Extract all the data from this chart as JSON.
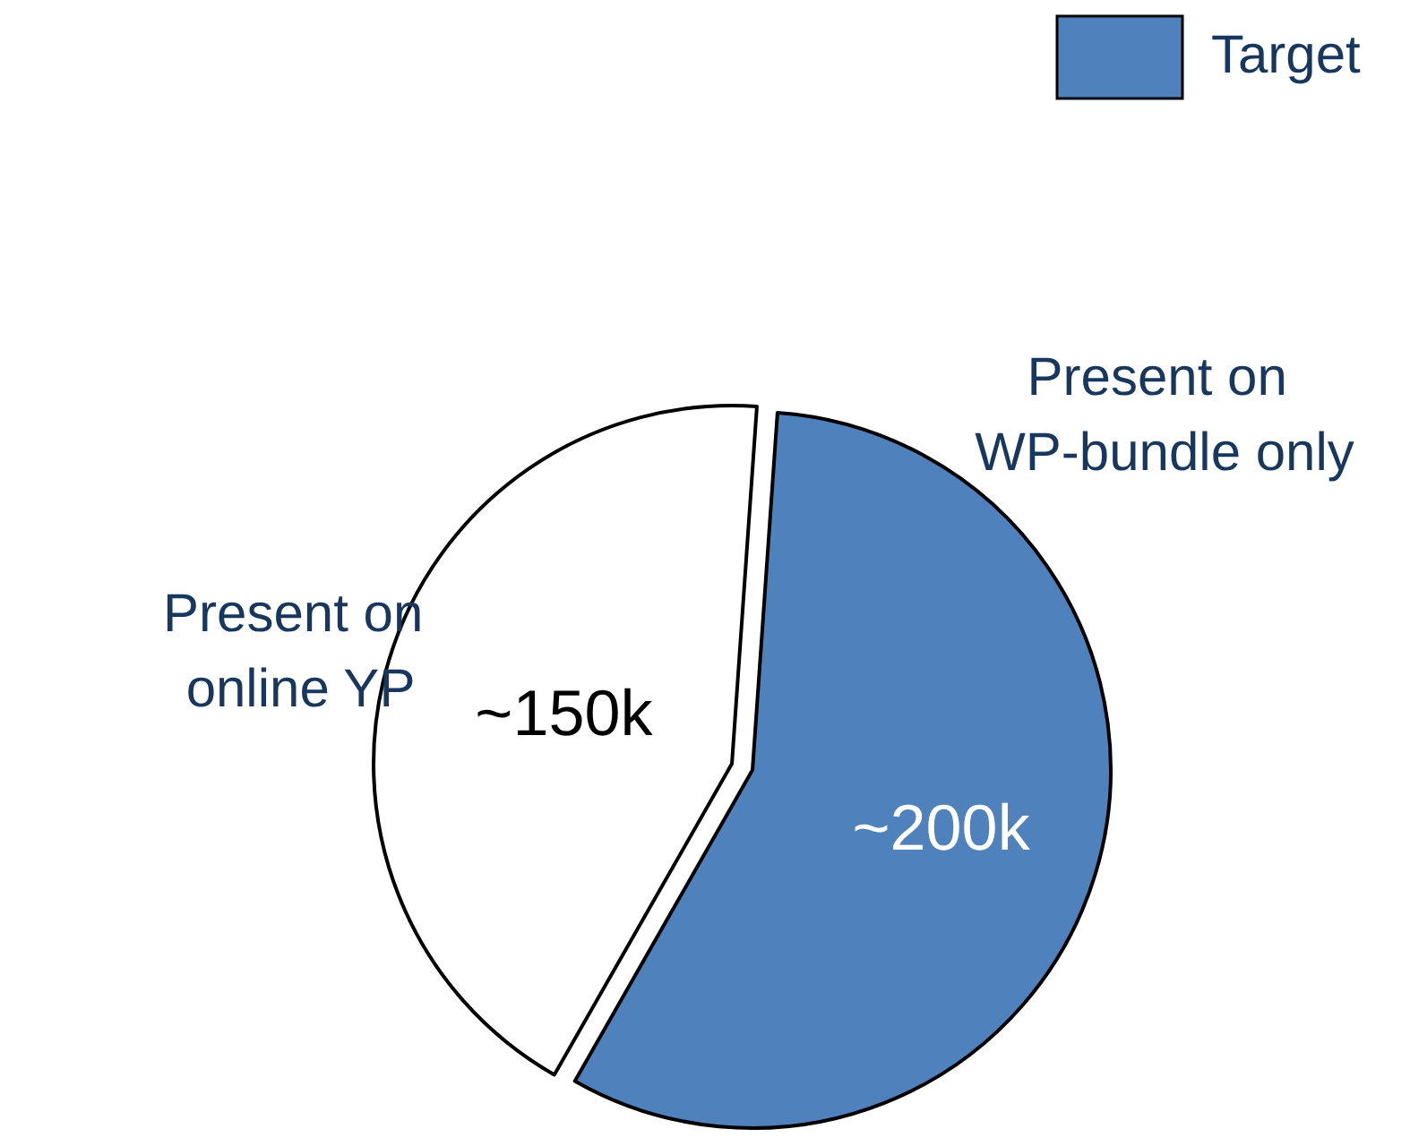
{
  "chart_data": {
    "type": "pie",
    "categories": [
      "Present on online YP",
      "Present on WP-bundle only"
    ],
    "values": [
      150,
      200
    ],
    "value_labels": [
      "~150k",
      "~200k"
    ],
    "colors": [
      "#ffffff",
      "#4f81bd"
    ],
    "annotations": [
      "Target"
    ],
    "legend": false
  }
}
